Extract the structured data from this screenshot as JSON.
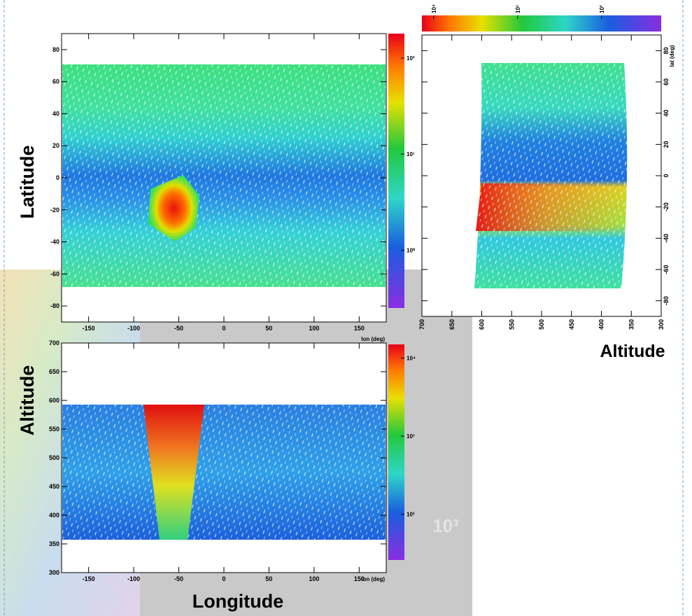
{
  "chart_data": [
    {
      "type": "heatmap",
      "ylabel": "Latitude",
      "x_unit_label": "lon (deg)",
      "xlim": [
        -180,
        180
      ],
      "xticks": [
        -150,
        -100,
        -50,
        0,
        50,
        100,
        150
      ],
      "ylim": [
        -90,
        90
      ],
      "yticks": [
        -80,
        -60,
        -40,
        -20,
        0,
        20,
        40,
        60,
        80
      ],
      "zscale": "log",
      "zlim": [
        0.25,
        180
      ],
      "zticks": [
        {
          "value": 1,
          "label": "10⁰"
        },
        {
          "value": 10,
          "label": "10¹"
        },
        {
          "value": 100,
          "label": "10²"
        }
      ]
    },
    {
      "type": "heatmap",
      "ylabel": "Altitude",
      "xlabel": "Longitude",
      "x_unit_label": "lon (deg)",
      "xlim": [
        -180,
        180
      ],
      "xticks": [
        -150,
        -100,
        -50,
        0,
        50,
        100,
        150
      ],
      "ylim": [
        300,
        700
      ],
      "yticks": [
        300,
        350,
        400,
        450,
        500,
        550,
        600,
        650,
        700
      ],
      "zscale": "log",
      "zlim": [
        26,
        15000
      ],
      "zticks": [
        {
          "value": 100,
          "label": "10²"
        },
        {
          "value": 1000,
          "label": "10³"
        },
        {
          "value": 10000,
          "label": "10⁴"
        }
      ]
    },
    {
      "type": "heatmap",
      "xlabel": "Altitude",
      "y_unit_label": "lat (deg)",
      "xlim": [
        700,
        300
      ],
      "xticks": [
        700,
        650,
        600,
        550,
        500,
        450,
        400,
        350,
        300
      ],
      "ylim": [
        -90,
        90
      ],
      "yticks": [
        -80,
        -60,
        -40,
        -20,
        0,
        20,
        40,
        60,
        80
      ],
      "zscale": "log",
      "zlim": [
        13800,
        19.5
      ],
      "zticks": [
        {
          "value": 10000,
          "label": "10⁴"
        },
        {
          "value": 1000,
          "label": "10³"
        },
        {
          "value": 100,
          "label": "10²"
        }
      ]
    }
  ],
  "overlay_text": "10³"
}
